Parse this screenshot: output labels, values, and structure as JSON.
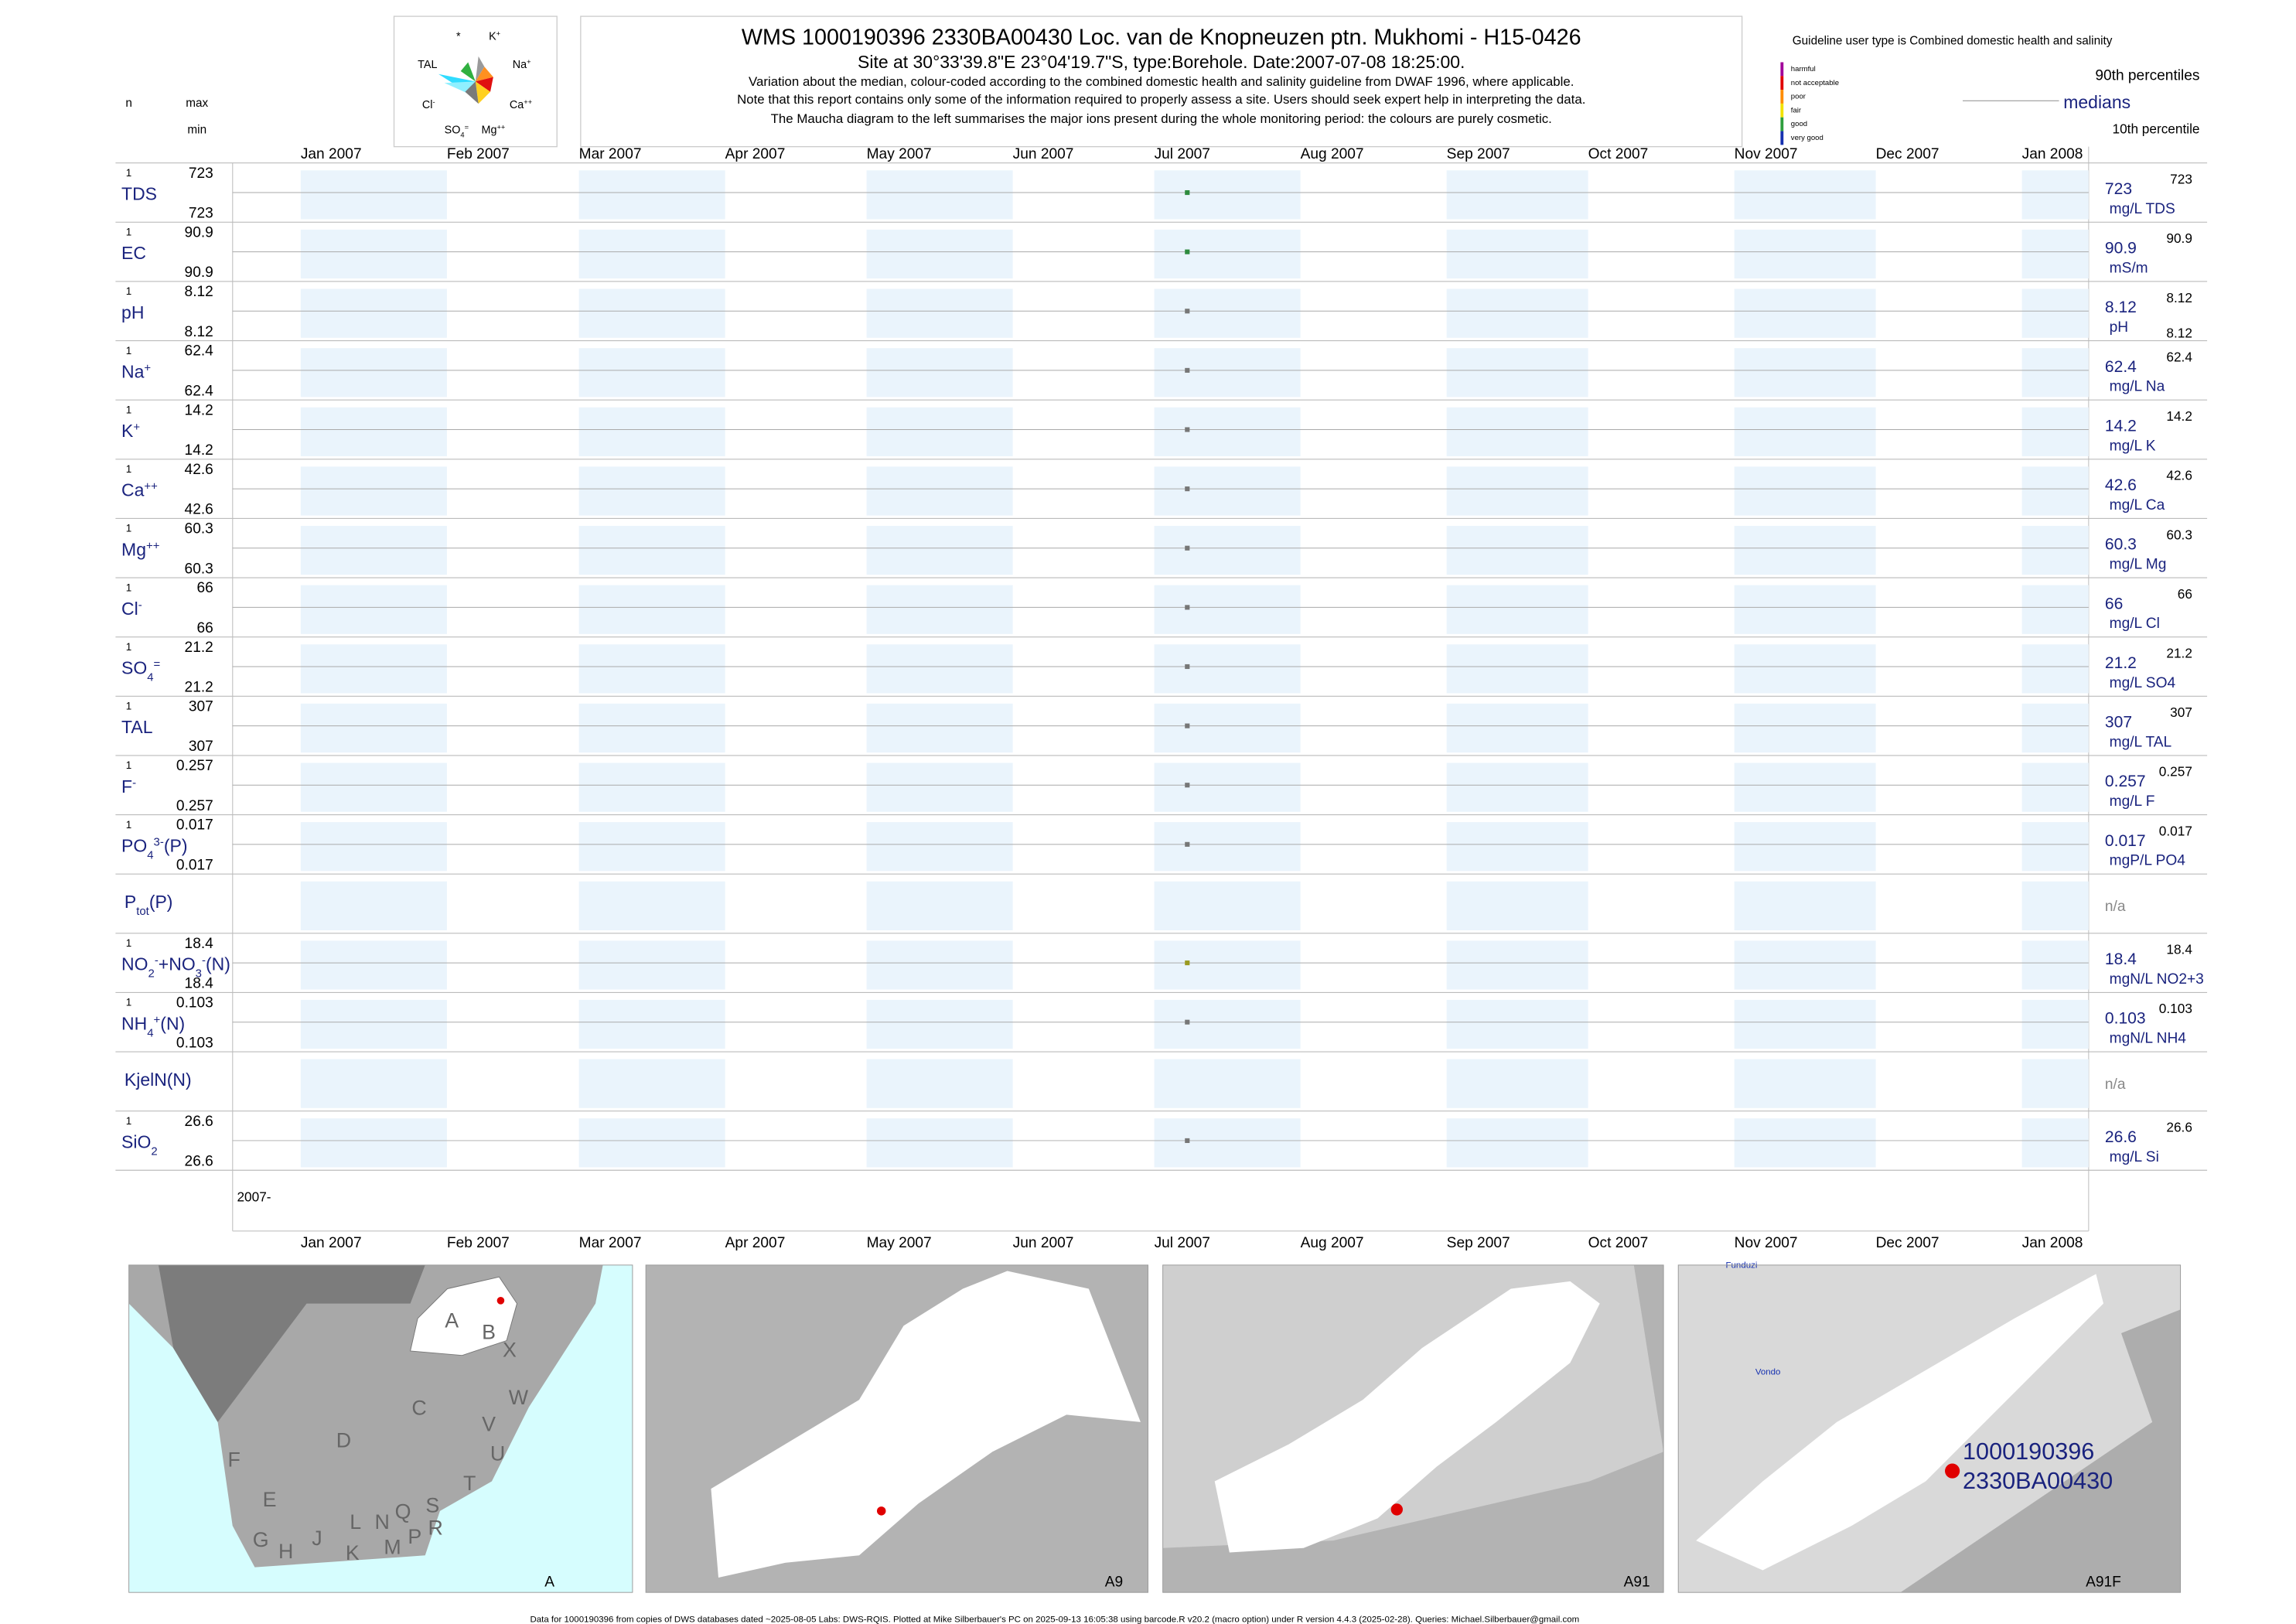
{
  "header": {
    "title": "WMS 1000190396 2330BA00430 Loc. van de Knopneuzen ptn. Mukhomi - H15-0426",
    "subtitle": "Site at 30°33'39.8\"E 23°04'19.7\"S, type:Borehole. Date:2007-07-08 18:25:00.",
    "notes": [
      "Variation about the median,  colour-coded according to the combined domestic health and salinity guideline from DWAF 1996, where applicable.",
      "Note that this report contains only some of the information required to properly assess a site. Users should seek expert help in interpreting the data.",
      "The Maucha diagram to the left summarises the major ions present during the whole monitoring period: the colours are purely cosmetic."
    ]
  },
  "maucha": {
    "labels": [
      [
        {
          "t": "*"
        }
      ],
      [
        {
          "t": "K"
        },
        {
          "t": "+",
          "sup": true
        }
      ],
      [
        {
          "t": "TAL"
        }
      ],
      [
        {
          "t": "Na"
        },
        {
          "t": "+",
          "sup": true
        }
      ],
      [
        {
          "t": "Cl"
        },
        {
          "t": "-",
          "sup": true
        }
      ],
      [
        {
          "t": "Ca"
        },
        {
          "t": "++",
          "sup": true
        }
      ],
      [
        {
          "t": "SO"
        },
        {
          "t": "4",
          "sub": true
        },
        {
          "t": "=",
          "sup": true
        }
      ],
      [
        {
          "t": "Mg"
        },
        {
          "t": "++",
          "sup": true
        }
      ]
    ]
  },
  "left_header": {
    "n": "n",
    "max": "max",
    "min": "min"
  },
  "guideline": {
    "title": "Guideline user type is Combined domestic health and salinity",
    "classes": [
      {
        "label": "harmful",
        "color": "#a0009a"
      },
      {
        "label": "not acceptable",
        "color": "#e00000"
      },
      {
        "label": "poor",
        "color": "#ff8c00"
      },
      {
        "label": "fair",
        "color": "#f2e200"
      },
      {
        "label": "good",
        "color": "#2e9e3e"
      },
      {
        "label": "very good",
        "color": "#1530b0"
      }
    ]
  },
  "legend": {
    "upper": "90th percentiles",
    "median": "medians",
    "lower": "10th percentile"
  },
  "months": [
    "Jan 2007",
    "Feb 2007",
    "Mar 2007",
    "Apr 2007",
    "May 2007",
    "Jun 2007",
    "Jul 2007",
    "Aug 2007",
    "Sep 2007",
    "Oct 2007",
    "Nov 2007",
    "Dec 2007",
    "Jan 2008"
  ],
  "year_label": "2007-",
  "rows": [
    {
      "name": [
        {
          "t": "TDS"
        }
      ],
      "n": 1,
      "max": 723,
      "min": 723,
      "median": 723,
      "unit": "mg/L TDS",
      "color": "#2e8b3e"
    },
    {
      "name": [
        {
          "t": "EC"
        }
      ],
      "n": 1,
      "max": 90.9,
      "min": 90.9,
      "median": 90.9,
      "unit": "mS/m",
      "color": "#2e8b3e"
    },
    {
      "name": [
        {
          "t": "pH"
        }
      ],
      "n": 1,
      "max": 8.12,
      "min": 8.12,
      "median": 8.12,
      "unit": "pH",
      "color": "#777777",
      "show_min_right": true
    },
    {
      "name": [
        {
          "t": "Na"
        },
        {
          "t": "+",
          "sup": true
        }
      ],
      "n": 1,
      "max": 62.4,
      "min": 62.4,
      "median": 62.4,
      "unit": "mg/L Na",
      "color": "#777777"
    },
    {
      "name": [
        {
          "t": "K"
        },
        {
          "t": "+",
          "sup": true
        }
      ],
      "n": 1,
      "max": 14.2,
      "min": 14.2,
      "median": 14.2,
      "unit": "mg/L K",
      "color": "#777777"
    },
    {
      "name": [
        {
          "t": "Ca"
        },
        {
          "t": "++",
          "sup": true
        }
      ],
      "n": 1,
      "max": 42.6,
      "min": 42.6,
      "median": 42.6,
      "unit": "mg/L Ca",
      "color": "#777777"
    },
    {
      "name": [
        {
          "t": "Mg"
        },
        {
          "t": "++",
          "sup": true
        }
      ],
      "n": 1,
      "max": 60.3,
      "min": 60.3,
      "median": 60.3,
      "unit": "mg/L Mg",
      "color": "#777777"
    },
    {
      "name": [
        {
          "t": "Cl"
        },
        {
          "t": "-",
          "sup": true
        }
      ],
      "n": 1,
      "max": 66,
      "min": 66,
      "median": 66,
      "unit": "mg/L Cl",
      "color": "#777777"
    },
    {
      "name": [
        {
          "t": "SO"
        },
        {
          "t": "4",
          "sub": true
        },
        {
          "t": "=",
          "sup": true
        }
      ],
      "n": 1,
      "max": 21.2,
      "min": 21.2,
      "median": 21.2,
      "unit": "mg/L SO4",
      "color": "#777777"
    },
    {
      "name": [
        {
          "t": "TAL"
        }
      ],
      "n": 1,
      "max": 307,
      "min": 307,
      "median": 307,
      "unit": "mg/L TAL",
      "color": "#777777"
    },
    {
      "name": [
        {
          "t": "F"
        },
        {
          "t": "-",
          "sup": true
        }
      ],
      "n": 1,
      "max": 0.257,
      "min": 0.257,
      "median": 0.257,
      "unit": "mg/L F",
      "color": "#777777"
    },
    {
      "name": [
        {
          "t": "PO"
        },
        {
          "t": "4",
          "sub": true
        },
        {
          "t": "3-",
          "sup": true
        },
        {
          "t": "(P)"
        }
      ],
      "n": 1,
      "max": 0.017,
      "min": 0.017,
      "median": 0.017,
      "unit": "mgP/L PO4",
      "color": "#777777"
    },
    {
      "name": [
        {
          "t": "P"
        },
        {
          "t": "tot",
          "sub": true
        },
        {
          "t": "(P)"
        }
      ],
      "median": "n/a"
    },
    {
      "name": [
        {
          "t": "NO"
        },
        {
          "t": "2",
          "sub": true
        },
        {
          "t": "-",
          "sup": true
        },
        {
          "t": "+NO"
        },
        {
          "t": "3",
          "sub": true
        },
        {
          "t": "-",
          "sup": true
        },
        {
          "t": "(N)"
        }
      ],
      "n": 1,
      "max": 18.4,
      "min": 18.4,
      "median": 18.4,
      "unit": "mgN/L NO2+3",
      "color": "#9a9a20"
    },
    {
      "name": [
        {
          "t": "NH"
        },
        {
          "t": "4",
          "sub": true
        },
        {
          "t": "+",
          "sup": true
        },
        {
          "t": "(N)"
        }
      ],
      "n": 1,
      "max": 0.103,
      "min": 0.103,
      "median": 0.103,
      "unit": "mgN/L NH4",
      "color": "#777777"
    },
    {
      "name": [
        {
          "t": "KjelN(N)"
        }
      ],
      "median": "n/a"
    },
    {
      "name": [
        {
          "t": "SiO"
        },
        {
          "t": "2",
          "sub": true
        }
      ],
      "n": 1,
      "max": 26.6,
      "min": 26.6,
      "median": 26.6,
      "unit": "mg/L Si",
      "color": "#777777"
    }
  ],
  "maps": [
    {
      "caption": "A",
      "labels": [
        "A",
        "B",
        "X",
        "C",
        "W",
        "D",
        "V",
        "U",
        "F",
        "T",
        "E",
        "L",
        "N",
        "Q",
        "S",
        "G",
        "H",
        "J",
        "K",
        "M",
        "P",
        "R"
      ]
    },
    {
      "caption": "A9"
    },
    {
      "caption": "A91"
    },
    {
      "caption": "A91F",
      "labels": [
        "Funduzi",
        "Vondo"
      ]
    }
  ],
  "site_labels": [
    "1000190396",
    "2330BA00430"
  ],
  "footer": "Data for 1000190396 from copies of DWS databases dated ~2025-08-05 Labs: DWS-RQIS. Plotted at Mike Silberbauer's PC on 2025-09-13 16:05:38 using barcode.R v20.2 (macro option) under R version 4.4.3 (2025-02-28). Queries: Michael.Silberbauer@gmail.com"
}
